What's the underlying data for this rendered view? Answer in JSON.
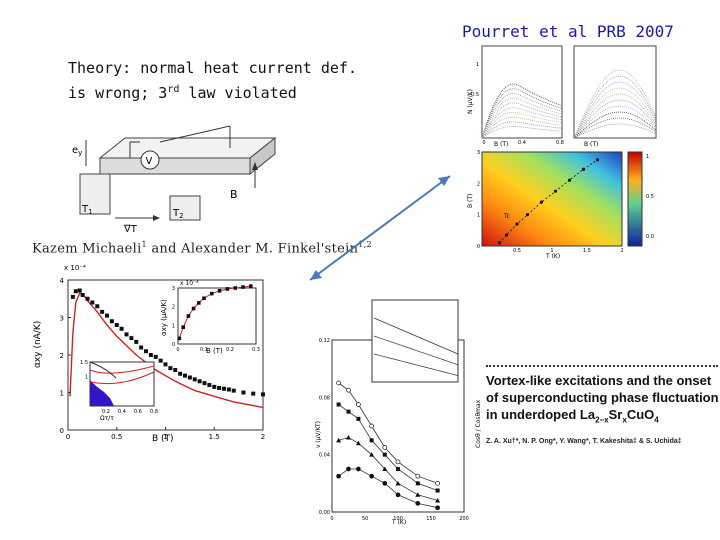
{
  "header": {
    "citation": "Pourret et al PRB 2007",
    "theory_line1": "Theory: normal heat current def.",
    "theory_line2_pre": "is wrong; 3",
    "theory_line2_sup": "rd",
    "theory_line2_post": " law violated"
  },
  "schematic": {
    "label_v": "V",
    "label_b": "B",
    "label_t1": "T",
    "label_t1_sub": "1",
    "label_t2": "T",
    "label_t2_sub": "2",
    "label_gradT": "∇T",
    "label_ey": "e",
    "label_ey_sub": "y"
  },
  "authors_line": {
    "name1": "Kazem Michaeli",
    "name1_sup": "1",
    "and": " and ",
    "name2": "Alexander M. Finkel'stein",
    "name2_sup": "1,2"
  },
  "article": {
    "title_line1": "Vortex-like excitations and the onset",
    "title_line2": "of superconducting phase fluctuation",
    "title_line3_pre": "in underdoped La",
    "title_sub1": "2−x",
    "title_mid": "Sr",
    "title_sub2": "x",
    "title_end": "CuO",
    "title_sub3": "4",
    "authors": "Z. A. Xu†*, N. P. Ong*, Y. Wang*, T. Kakeshita‡ & S. Uchida‡"
  },
  "figure_labels": {
    "alpha_xy_ylabel": "αxy (nA/K)",
    "alpha_xy_xlabel": "B (T)",
    "alpha_xy_scale": "x 10⁻⁴",
    "inset_scale": "x 10⁻⁴",
    "inset_ylabel": "αxy (μA/K)",
    "inset_xlabel": "B (T)",
    "small_inset_xlabel": "Ωτ/τ",
    "nernst_ylabel": "N (μV/K)",
    "nernst_xlabel": "B (T)",
    "phase_ylabel": "B (T)",
    "phase_xlabel": "T (K)",
    "phase_tc": "Tc",
    "xu_ylabel": "ν (μV/KT)",
    "xu_xlabel": "T (K)",
    "xu_right_ylabel": "Cosθ / Cosθmax"
  },
  "colors": {
    "citation": "#1a1aa8",
    "arrow": "#4a7ab8",
    "theory_curve": "#d22020",
    "data_marker": "#111111",
    "inset_fill": "#3018c8"
  },
  "chart_data": [
    {
      "type": "line",
      "xlabel": "B (T)",
      "ylabel": "αxy (nA/K)",
      "xlim": [
        0,
        2
      ],
      "ylim": [
        0,
        4
      ],
      "x_ticks": [
        "0",
        "0.5",
        "1",
        "1.5",
        "2"
      ],
      "y_ticks": [
        "0",
        "1",
        "2",
        "3",
        "4"
      ],
      "series": [
        {
          "x": [
            0.02,
            0.05,
            0.08,
            0.12,
            0.16,
            0.2,
            0.25,
            0.3,
            0.4,
            0.5,
            0.7,
            0.9,
            1.1,
            1.3,
            1.5,
            1.7,
            1.9,
            2.0
          ],
          "values": [
            0.9,
            2.6,
            3.4,
            3.65,
            3.6,
            3.45,
            3.3,
            3.15,
            2.8,
            2.5,
            2.0,
            1.6,
            1.3,
            1.05,
            0.9,
            0.75,
            0.65,
            0.6
          ]
        },
        {
          "x": [
            0.05,
            0.08,
            0.12,
            0.15,
            0.2,
            0.25,
            0.3,
            0.35,
            0.4,
            0.45,
            0.5,
            0.55,
            0.6,
            0.65,
            0.7,
            0.75,
            0.8,
            0.85,
            0.9,
            0.95,
            1.0,
            1.05,
            1.1,
            1.15,
            1.2,
            1.25,
            1.3,
            1.35,
            1.4,
            1.45,
            1.5,
            1.55,
            1.6,
            1.65,
            1.7,
            1.8,
            1.9,
            2.0
          ],
          "values": [
            3.55,
            3.7,
            3.72,
            3.6,
            3.5,
            3.4,
            3.3,
            3.15,
            3.05,
            2.9,
            2.8,
            2.7,
            2.55,
            2.45,
            2.35,
            2.2,
            2.1,
            2.0,
            1.95,
            1.85,
            1.75,
            1.65,
            1.6,
            1.5,
            1.45,
            1.4,
            1.35,
            1.3,
            1.25,
            1.2,
            1.15,
            1.12,
            1.1,
            1.08,
            1.05,
            1.0,
            0.97,
            0.95
          ]
        }
      ]
    },
    {
      "type": "scatter",
      "xlabel": "B (T)",
      "ylabel": "αxy (μA/K)",
      "xlim": [
        0,
        0.3
      ],
      "ylim": [
        0,
        3
      ],
      "x_ticks": [
        "0",
        "0.1",
        "0.2",
        "0.3"
      ],
      "y_ticks": [
        "0",
        "1",
        "2",
        "3"
      ],
      "series": [
        {
          "x": [
            0.005,
            0.02,
            0.04,
            0.06,
            0.08,
            0.1,
            0.13,
            0.16,
            0.19,
            0.22,
            0.25,
            0.28
          ],
          "values": [
            0.3,
            0.9,
            1.5,
            1.9,
            2.2,
            2.45,
            2.7,
            2.85,
            2.95,
            3.0,
            3.05,
            3.1
          ]
        }
      ]
    },
    {
      "type": "line",
      "xlabel": "Ωτ/τ",
      "xlim": [
        0,
        0.8
      ],
      "ylim": [
        0,
        1.5
      ],
      "x_ticks": [
        "0.2",
        "0.4",
        "0.6",
        "0.8"
      ],
      "y_ticks": [
        "1.5",
        "1"
      ],
      "series": []
    },
    {
      "type": "scatter",
      "xlabel": "B (T)",
      "ylabel": "N (μV/K)",
      "x_ticks": [
        "0",
        "0.4",
        "0.8"
      ],
      "y_ticks": [
        "1",
        "0.5"
      ],
      "series": []
    },
    {
      "type": "heatmap",
      "xlabel": "T (K)",
      "ylabel": "B (T)",
      "xlim": [
        0,
        2
      ],
      "ylim": [
        0,
        3
      ],
      "x_ticks": [
        "0.5",
        "1",
        "1.5",
        "2"
      ],
      "y_ticks": [
        "0",
        "1",
        "2",
        "3"
      ],
      "colorbar_ticks": [
        "1",
        "0.5",
        "0.0"
      ],
      "series": [
        {
          "x": [
            0.25,
            0.35,
            0.5,
            0.65,
            0.85,
            1.05,
            1.25,
            1.45,
            1.65
          ],
          "values": [
            0.1,
            0.35,
            0.7,
            1.0,
            1.4,
            1.75,
            2.1,
            2.45,
            2.75
          ]
        }
      ]
    },
    {
      "type": "line",
      "xlabel": "T (K)",
      "ylabel": "ν (μV/KT)",
      "xlim": [
        0,
        200
      ],
      "ylim": [
        0,
        0.12
      ],
      "x_ticks": [
        "0",
        "50",
        "100",
        "150",
        "200"
      ],
      "y_ticks": [
        "0.12",
        "0.08",
        "0.04",
        "0.00"
      ],
      "series": [
        {
          "x": [
            10,
            25,
            40,
            60,
            80,
            100,
            130,
            160
          ],
          "values": [
            0.09,
            0.085,
            0.075,
            0.06,
            0.045,
            0.035,
            0.025,
            0.02
          ]
        },
        {
          "x": [
            10,
            25,
            40,
            60,
            80,
            100,
            130,
            160
          ],
          "values": [
            0.075,
            0.07,
            0.065,
            0.05,
            0.04,
            0.03,
            0.02,
            0.015
          ]
        },
        {
          "x": [
            10,
            25,
            40,
            60,
            80,
            100,
            130,
            160
          ],
          "values": [
            0.05,
            0.052,
            0.048,
            0.04,
            0.03,
            0.02,
            0.012,
            0.008
          ]
        },
        {
          "x": [
            10,
            25,
            40,
            60,
            80,
            100,
            130,
            160
          ],
          "values": [
            0.025,
            0.03,
            0.03,
            0.025,
            0.02,
            0.012,
            0.006,
            0.003
          ]
        }
      ]
    }
  ]
}
